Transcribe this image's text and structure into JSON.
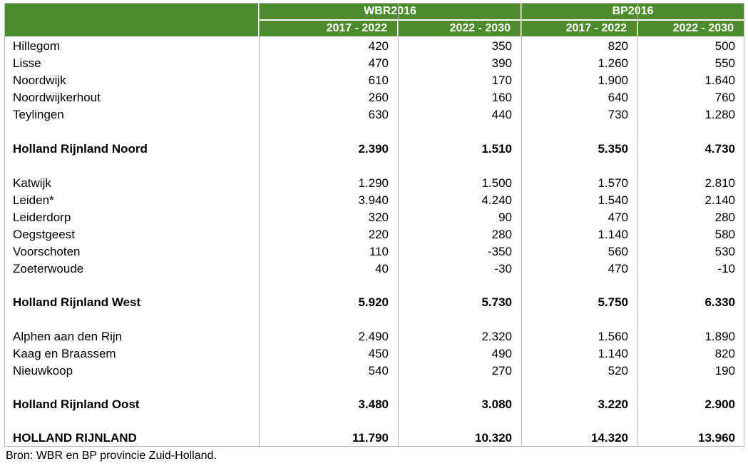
{
  "table": {
    "groups": [
      "WBR2016",
      "BP2016"
    ],
    "periods": [
      "2017 - 2022",
      "2022 - 2030",
      "2017 - 2022",
      "2022 - 2030"
    ],
    "rows": [
      {
        "name": "Hillegom",
        "values": [
          "420",
          "350",
          "820",
          "500"
        ],
        "bold": false
      },
      {
        "name": "Lisse",
        "values": [
          "470",
          "390",
          "1.260",
          "550"
        ],
        "bold": false
      },
      {
        "name": "Noordwijk",
        "values": [
          "610",
          "170",
          "1.900",
          "1.640"
        ],
        "bold": false
      },
      {
        "name": "Noordwijkerhout",
        "values": [
          "260",
          "160",
          "640",
          "760"
        ],
        "bold": false
      },
      {
        "name": "Teylingen",
        "values": [
          "630",
          "440",
          "730",
          "1.280"
        ],
        "bold": false
      },
      {
        "name": "Holland Rijnland Noord",
        "values": [
          "2.390",
          "1.510",
          "5.350",
          "4.730"
        ],
        "bold": true
      },
      {
        "name": "Katwijk",
        "values": [
          "1.290",
          "1.500",
          "1.570",
          "2.810"
        ],
        "bold": false
      },
      {
        "name": "Leiden*",
        "values": [
          "3.940",
          "4.240",
          "1.540",
          "2.140"
        ],
        "bold": false
      },
      {
        "name": "Leiderdorp",
        "values": [
          "320",
          "90",
          "470",
          "280"
        ],
        "bold": false
      },
      {
        "name": "Oegstgeest",
        "values": [
          "220",
          "280",
          "1.140",
          "580"
        ],
        "bold": false
      },
      {
        "name": "Voorschoten",
        "values": [
          "110",
          "-350",
          "560",
          "530"
        ],
        "bold": false
      },
      {
        "name": "Zoeterwoude",
        "values": [
          "40",
          "-30",
          "470",
          "-10"
        ],
        "bold": false
      },
      {
        "name": "Holland Rijnland West",
        "values": [
          "5.920",
          "5.730",
          "5.750",
          "6.330"
        ],
        "bold": true
      },
      {
        "name": "Alphen aan den Rijn",
        "values": [
          "2.490",
          "2.320",
          "1.560",
          "1.890"
        ],
        "bold": false
      },
      {
        "name": "Kaag en Braassem",
        "values": [
          "450",
          "490",
          "1.140",
          "820"
        ],
        "bold": false
      },
      {
        "name": "Nieuwkoop",
        "values": [
          "540",
          "270",
          "520",
          "190"
        ],
        "bold": false
      },
      {
        "name": "Holland Rijnland Oost",
        "values": [
          "3.480",
          "3.080",
          "3.220",
          "2.900"
        ],
        "bold": true
      },
      {
        "name": "HOLLAND RIJNLAND",
        "values": [
          "11.790",
          "10.320",
          "14.320",
          "13.960"
        ],
        "bold": true
      }
    ]
  },
  "source": "Bron: WBR en BP provincie Zuid-Holland."
}
